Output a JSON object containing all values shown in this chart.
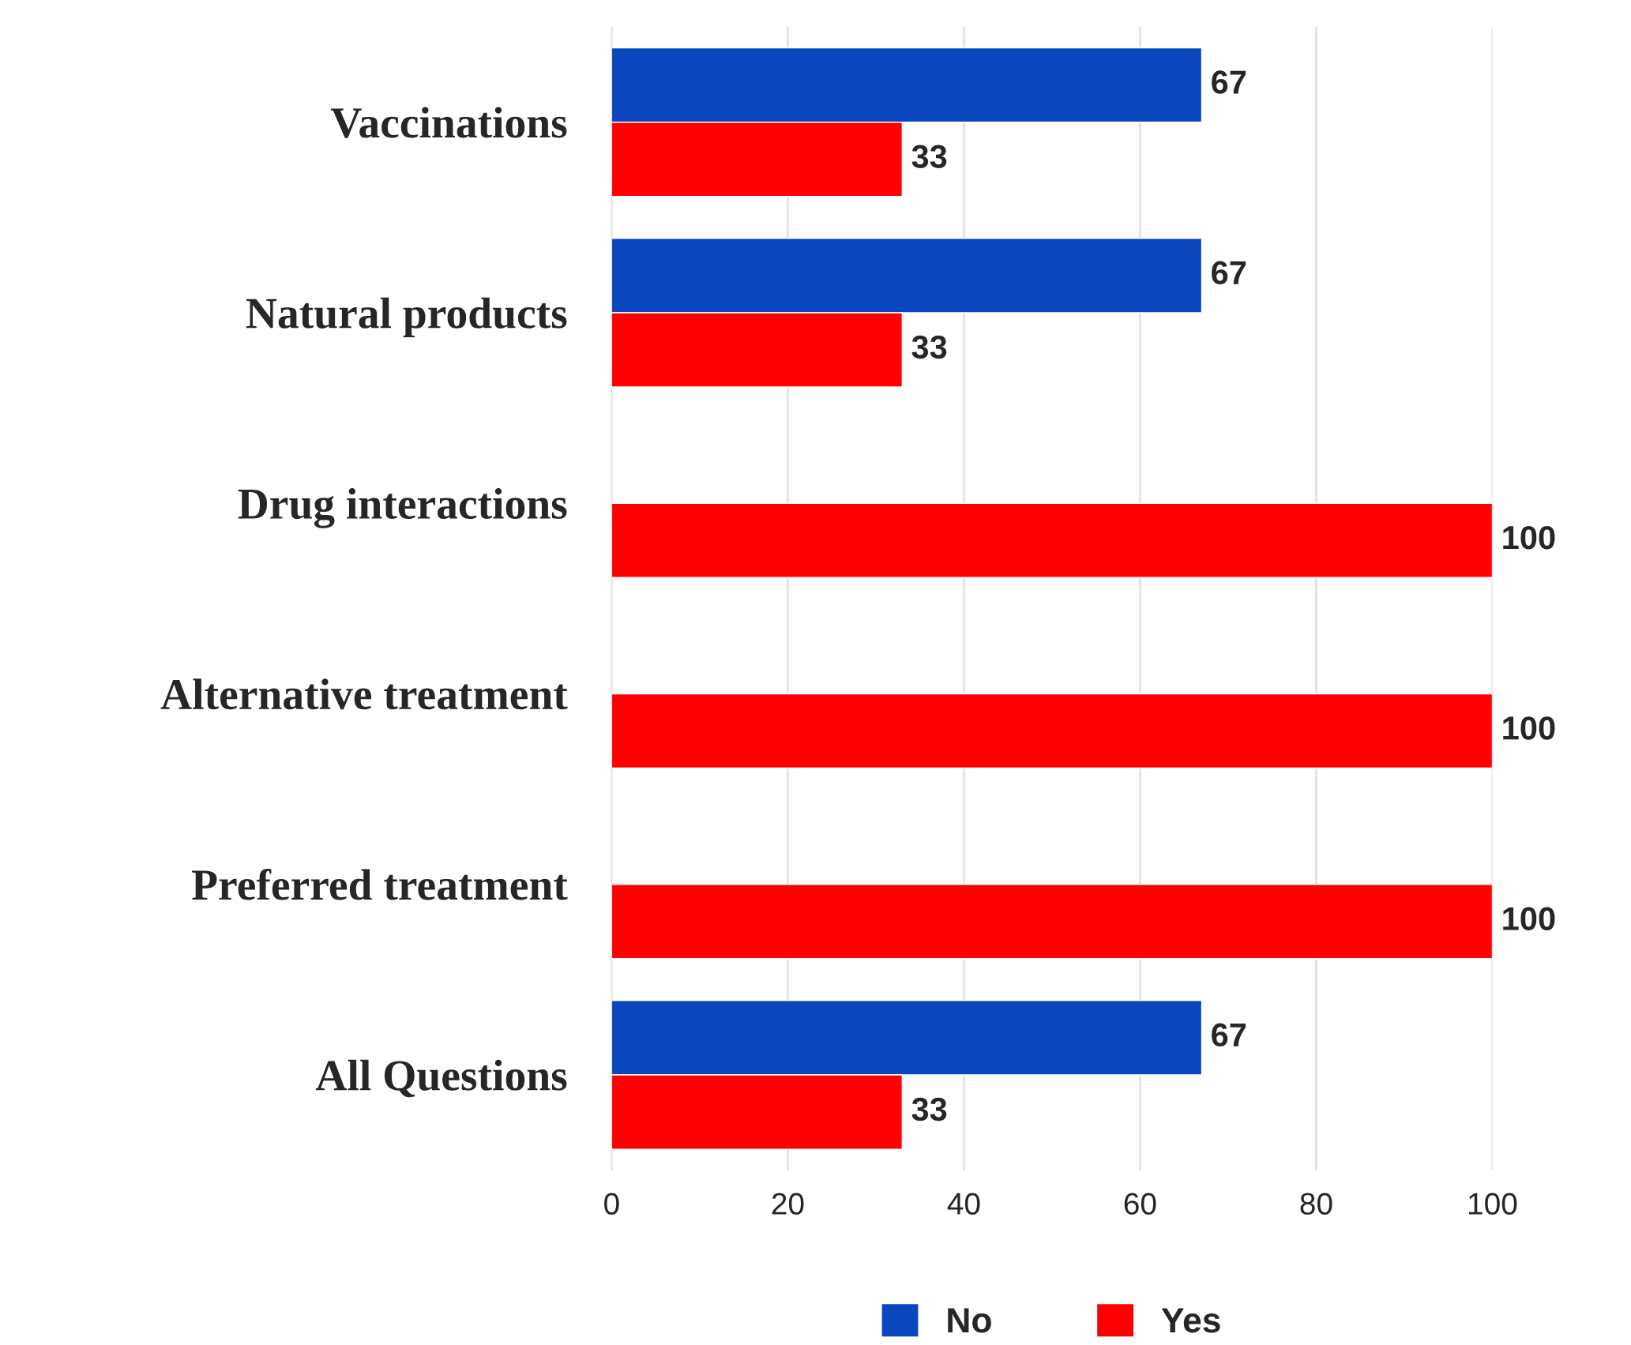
{
  "chart_data": {
    "type": "bar",
    "orientation": "horizontal",
    "categories": [
      "Vaccinations",
      "Natural products",
      "Drug interactions",
      "Alternative treatment",
      "Preferred treatment",
      "All Questions"
    ],
    "series": [
      {
        "name": "No",
        "color": "#0a47be",
        "values": [
          67,
          67,
          null,
          null,
          null,
          67
        ]
      },
      {
        "name": "Yes",
        "color": "#ff0000",
        "values": [
          33,
          33,
          100,
          100,
          100,
          33
        ]
      }
    ],
    "xlim": [
      0,
      100
    ],
    "xticks": [
      0,
      20,
      40,
      60,
      80,
      100
    ],
    "grid": "x",
    "legend": "bottom",
    "data_labels": true
  }
}
